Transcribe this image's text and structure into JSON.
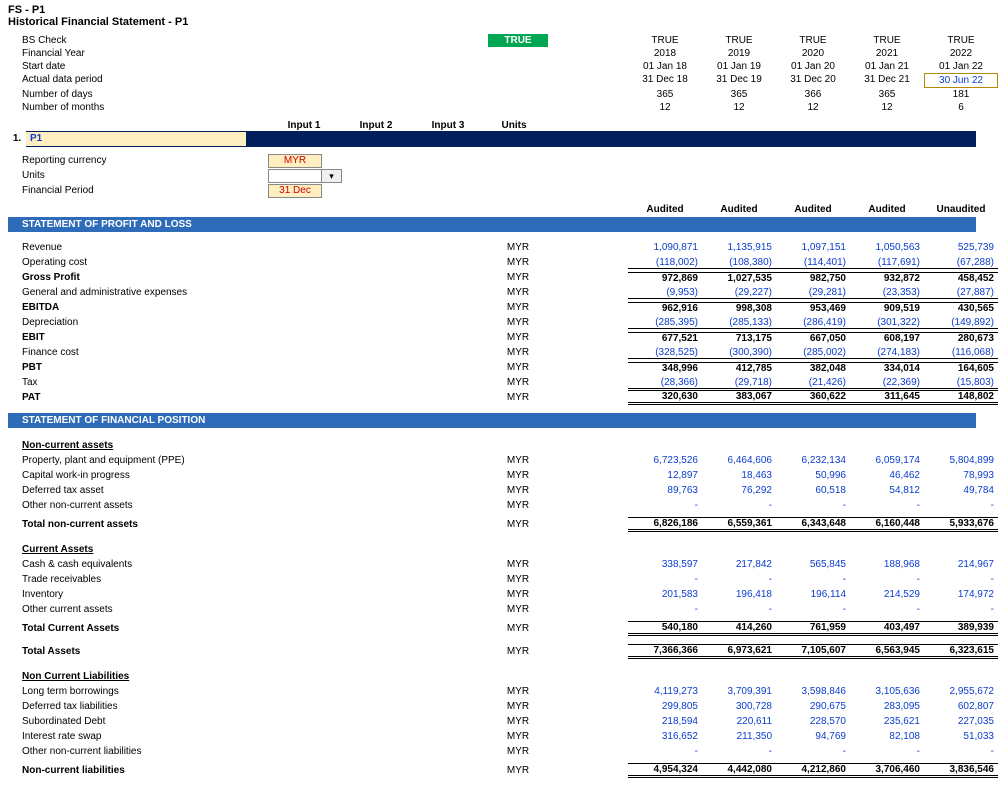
{
  "title1": "FS - P1",
  "title2": "Historical Financial Statement - P1",
  "header": {
    "labels": [
      "BS Check",
      "Financial Year",
      "Start date",
      "Actual data period",
      "Number of days",
      "Number of months"
    ],
    "true_pill": "TRUE",
    "years": {
      "check": [
        "TRUE",
        "TRUE",
        "TRUE",
        "TRUE",
        "TRUE"
      ],
      "fy": [
        "2018",
        "2019",
        "2020",
        "2021",
        "2022"
      ],
      "start": [
        "01 Jan 18",
        "01 Jan 19",
        "01 Jan 20",
        "01 Jan 21",
        "01 Jan 22"
      ],
      "end": [
        "31 Dec 18",
        "31 Dec 19",
        "31 Dec 20",
        "31 Dec 21",
        "30 Jun 22"
      ],
      "days": [
        "365",
        "365",
        "366",
        "365",
        "181"
      ],
      "months": [
        "12",
        "12",
        "12",
        "12",
        "6"
      ]
    }
  },
  "col_heads": [
    "Input 1",
    "Input 2",
    "Input 3",
    "Units"
  ],
  "section_num": "1.",
  "section_lbl": "P1",
  "params": {
    "currency_lbl": "Reporting currency",
    "currency_val": "MYR",
    "units_lbl": "Units",
    "period_lbl": "Financial Period",
    "period_val": "31 Dec"
  },
  "audit": [
    "Audited",
    "Audited",
    "Audited",
    "Audited",
    "Unaudited"
  ],
  "pl_hdr": "STATEMENT OF PROFIT AND LOSS",
  "pl": [
    {
      "lbl": "Revenue",
      "unit": "MYR",
      "v": [
        "1,090,871",
        "1,135,915",
        "1,097,151",
        "1,050,563",
        "525,739"
      ]
    },
    {
      "lbl": "Operating cost",
      "unit": "MYR",
      "v": [
        "(118,002)",
        "(108,380)",
        "(114,401)",
        "(117,691)",
        "(67,288)"
      ],
      "ul": true
    },
    {
      "lbl": "Gross Profit",
      "unit": "MYR",
      "v": [
        "972,869",
        "1,027,535",
        "982,750",
        "932,872",
        "458,452"
      ],
      "bold": true,
      "bt": true
    },
    {
      "lbl": "General and administrative expenses",
      "unit": "MYR",
      "v": [
        "(9,953)",
        "(29,227)",
        "(29,281)",
        "(23,353)",
        "(27,887)"
      ],
      "ul": true
    },
    {
      "lbl": "EBITDA",
      "unit": "MYR",
      "v": [
        "962,916",
        "998,308",
        "953,469",
        "909,519",
        "430,565"
      ],
      "bold": true,
      "bt": true
    },
    {
      "lbl": "Depreciation",
      "unit": "MYR",
      "v": [
        "(285,395)",
        "(285,133)",
        "(286,419)",
        "(301,322)",
        "(149,892)"
      ],
      "ul": true
    },
    {
      "lbl": "EBIT",
      "unit": "MYR",
      "v": [
        "677,521",
        "713,175",
        "667,050",
        "608,197",
        "280,673"
      ],
      "bold": true,
      "bt": true
    },
    {
      "lbl": "Finance cost",
      "unit": "MYR",
      "v": [
        "(328,525)",
        "(300,390)",
        "(285,002)",
        "(274,183)",
        "(116,068)"
      ],
      "ul": true
    },
    {
      "lbl": "PBT",
      "unit": "MYR",
      "v": [
        "348,996",
        "412,785",
        "382,048",
        "334,014",
        "164,605"
      ],
      "bold": true,
      "bt": true
    },
    {
      "lbl": "Tax",
      "unit": "MYR",
      "v": [
        "(28,366)",
        "(29,718)",
        "(21,426)",
        "(22,369)",
        "(15,803)"
      ],
      "ul": true
    },
    {
      "lbl": "PAT",
      "unit": "MYR",
      "v": [
        "320,630",
        "383,067",
        "360,622",
        "311,645",
        "148,802"
      ],
      "bold": true,
      "bt": true,
      "dbl": true
    }
  ],
  "fp_hdr": "STATEMENT OF FINANCIAL POSITION",
  "nca_hdr": "Non-current assets",
  "nca": [
    {
      "lbl": "Property, plant and equipment (PPE)",
      "unit": "MYR",
      "v": [
        "6,723,526",
        "6,464,606",
        "6,232,134",
        "6,059,174",
        "5,804,899"
      ]
    },
    {
      "lbl": "Capital work-in progress",
      "unit": "MYR",
      "v": [
        "12,897",
        "18,463",
        "50,996",
        "46,462",
        "78,993"
      ]
    },
    {
      "lbl": "Deferred tax asset",
      "unit": "MYR",
      "v": [
        "89,763",
        "76,292",
        "60,518",
        "54,812",
        "49,784"
      ]
    },
    {
      "lbl": "Other non-current assets",
      "unit": "MYR",
      "v": [
        "-",
        "-",
        "-",
        "-",
        "-"
      ]
    }
  ],
  "nca_total": {
    "lbl": "Total non-current assets",
    "unit": "MYR",
    "v": [
      "6,826,186",
      "6,559,361",
      "6,343,648",
      "6,160,448",
      "5,933,676"
    ]
  },
  "ca_hdr": "Current Assets",
  "ca": [
    {
      "lbl": "Cash & cash equivalents",
      "unit": "MYR",
      "v": [
        "338,597",
        "217,842",
        "565,845",
        "188,968",
        "214,967"
      ]
    },
    {
      "lbl": "Trade receivables",
      "unit": "MYR",
      "v": [
        "-",
        "-",
        "-",
        "-",
        "-"
      ]
    },
    {
      "lbl": "Inventory",
      "unit": "MYR",
      "v": [
        "201,583",
        "196,418",
        "196,114",
        "214,529",
        "174,972"
      ]
    },
    {
      "lbl": "Other current assets",
      "unit": "MYR",
      "v": [
        "-",
        "-",
        "-",
        "-",
        "-"
      ]
    }
  ],
  "ca_total": {
    "lbl": "Total Current Assets",
    "unit": "MYR",
    "v": [
      "540,180",
      "414,260",
      "761,959",
      "403,497",
      "389,939"
    ]
  },
  "ta_total": {
    "lbl": "Total Assets",
    "unit": "MYR",
    "v": [
      "7,366,366",
      "6,973,621",
      "7,105,607",
      "6,563,945",
      "6,323,615"
    ]
  },
  "ncl_hdr": "Non Current Liabilities",
  "ncl": [
    {
      "lbl": "Long term borrowings",
      "unit": "MYR",
      "v": [
        "4,119,273",
        "3,709,391",
        "3,598,846",
        "3,105,636",
        "2,955,672"
      ]
    },
    {
      "lbl": "Deferred tax liabilities",
      "unit": "MYR",
      "v": [
        "299,805",
        "300,728",
        "290,675",
        "283,095",
        "602,807"
      ]
    },
    {
      "lbl": "Subordinated Debt",
      "unit": "MYR",
      "v": [
        "218,594",
        "220,611",
        "228,570",
        "235,621",
        "227,035"
      ]
    },
    {
      "lbl": "Interest rate swap",
      "unit": "MYR",
      "v": [
        "316,652",
        "211,350",
        "94,769",
        "82,108",
        "51,033"
      ]
    },
    {
      "lbl": "Other non-current liabilities",
      "unit": "MYR",
      "v": [
        "-",
        "-",
        "-",
        "-",
        "-"
      ]
    }
  ],
  "ncl_total": {
    "lbl": "Non-current liabilities",
    "unit": "MYR",
    "v": [
      "4,954,324",
      "4,442,080",
      "4,212,860",
      "3,706,460",
      "3,836,546"
    ]
  }
}
